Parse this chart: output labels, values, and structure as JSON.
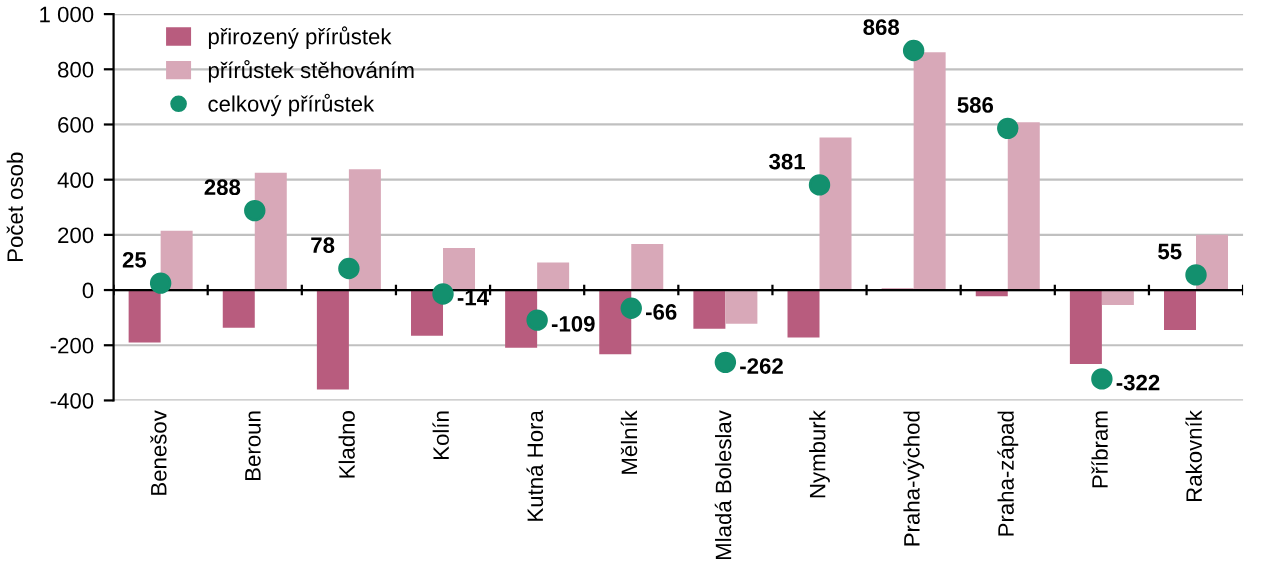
{
  "chart_data": {
    "type": "bar",
    "ylabel": "Počet osob",
    "categories": [
      "Benešov",
      "Beroun",
      "Kladno",
      "Kolín",
      "Kutná Hora",
      "Mělník",
      "Mladá Boleslav",
      "Nymburk",
      "Praha-východ",
      "Praha-západ",
      "Příbram",
      "Rakovník"
    ],
    "series": [
      {
        "name": "přirozený přírůstek",
        "color": "#b85c7e",
        "values": [
          -190,
          -137,
          -360,
          -166,
          -209,
          -233,
          -140,
          -172,
          6,
          -22,
          -268,
          -145
        ]
      },
      {
        "name": "přírůstek stěhováním",
        "color": "#d8a8b8",
        "values": [
          215,
          425,
          438,
          152,
          100,
          167,
          -122,
          553,
          862,
          608,
          -54,
          200
        ]
      },
      {
        "name": "celkový přírůstek",
        "type": "scatter",
        "color": "#13906e",
        "marker": "circle",
        "values": [
          25,
          288,
          78,
          -14,
          -109,
          -66,
          -262,
          381,
          868,
          586,
          -322,
          55
        ],
        "value_labels": [
          "25",
          "288",
          "78",
          "-14",
          "-109",
          "-66",
          "-262",
          "381",
          "868",
          "586",
          "-322",
          "55"
        ]
      }
    ],
    "ylim": [
      -400,
      1000
    ],
    "yticks": [
      -400,
      -200,
      0,
      200,
      400,
      600,
      800,
      {
        "value": 1000,
        "label": "1 000"
      }
    ],
    "grid": "y",
    "legend": "top left"
  }
}
